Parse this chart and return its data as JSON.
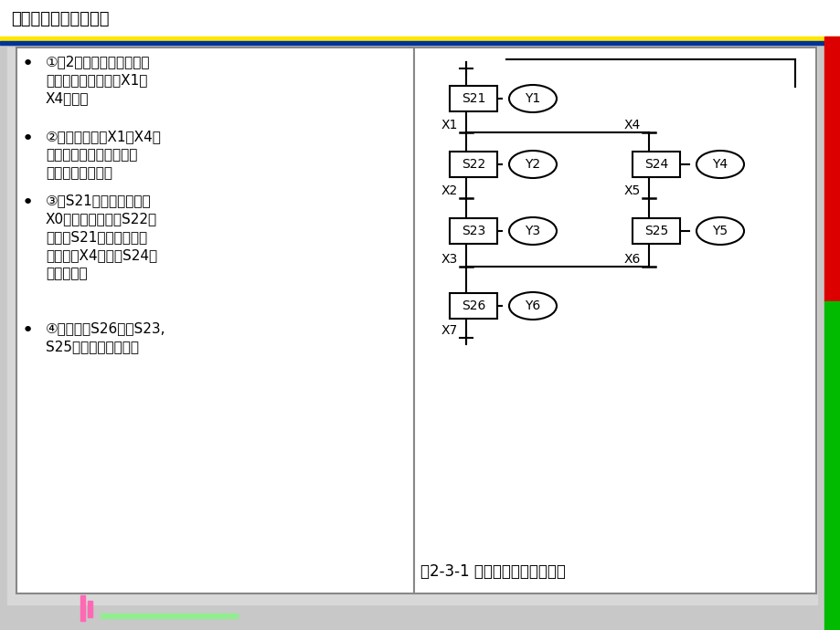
{
  "title": "可编程控制器应用技术",
  "bg_color": "#C8C8C8",
  "content_bg": "#D8D8D8",
  "panel_bg": "#FFFFFF",
  "header_line_yellow": "#FFE600",
  "header_line_blue": "#003399",
  "right_bar_red": "#DD0000",
  "right_bar_green": "#00BB00",
  "bullet_points_raw": [
    [
      "①从2个流程中选择执行哪",
      "一个流程由转移条件",
      "X1",
      "、",
      "X4",
      "决定。"
    ],
    [
      "②分支转移条件",
      "X1",
      "、",
      "X4",
      "不",
      "能同时接通，哪个接通，",
      "就执行哪条分支。"
    ],
    [
      "③当",
      "S21",
      "已动作时，一旦",
      "X0",
      "接通，程序就向",
      "S22",
      "转",
      "移，则",
      "S21",
      "复位。因此，",
      "即使以后",
      "X4",
      "接通，",
      "S24",
      "也",
      "不会动作。"
    ],
    [
      "④汇合状态",
      "S26",
      "可由",
      "S23",
      ",",
      "S25",
      "中任意一个驱动。"
    ]
  ],
  "figure_caption": "图2-3-1 选择性分支状态转移图",
  "bottom_bar1_color": "#FF69B4",
  "bottom_bar2_color": "#FF69B4",
  "bottom_bar3_color": "#90EE90"
}
